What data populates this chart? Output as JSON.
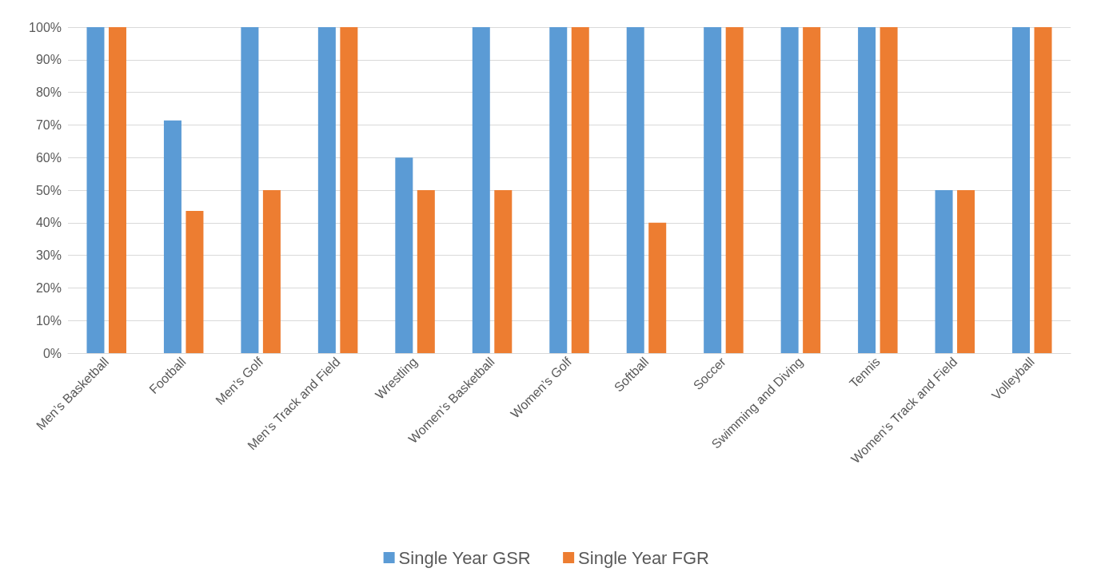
{
  "chart_data": {
    "type": "bar",
    "categories": [
      "Men’s Basketball",
      "Football",
      "Men’s Golf",
      "Men’s Track and Field",
      "Wrestling",
      "Women’s Basketball",
      "Women’s Golf",
      "Softball",
      "Soccer",
      "Swimming and Diving",
      "Tennis",
      "Women’s Track and Field",
      "Volleyball"
    ],
    "series": [
      {
        "name": "Single Year GSR",
        "color": "#5b9bd5",
        "values": [
          100,
          71.4,
          100,
          100,
          60,
          100,
          100,
          100,
          100,
          100,
          100,
          50,
          100
        ]
      },
      {
        "name": "Single Year FGR",
        "color": "#ed7d31",
        "values": [
          100,
          43.6,
          50,
          100,
          50,
          50,
          100,
          40,
          100,
          100,
          100,
          50,
          100
        ]
      }
    ],
    "ylim": [
      0,
      100
    ],
    "yticks": [
      {
        "value": 0,
        "label": "0%"
      },
      {
        "value": 10,
        "label": "10%"
      },
      {
        "value": 20,
        "label": "20%"
      },
      {
        "value": 30,
        "label": "30%"
      },
      {
        "value": 40,
        "label": "40%"
      },
      {
        "value": 50,
        "label": "50%"
      },
      {
        "value": 60,
        "label": "60%"
      },
      {
        "value": 70,
        "label": "70%"
      },
      {
        "value": 80,
        "label": "80%"
      },
      {
        "value": 90,
        "label": "90%"
      },
      {
        "value": 100,
        "label": "100%"
      }
    ],
    "grid": "y",
    "legend": "bottom"
  }
}
